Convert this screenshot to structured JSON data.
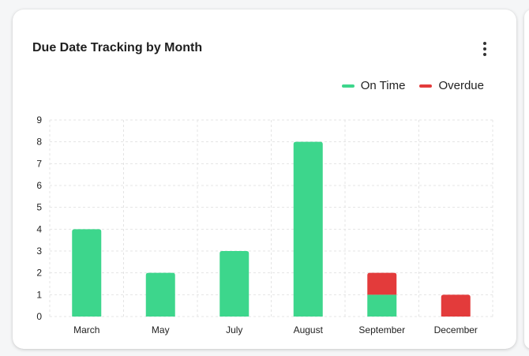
{
  "card": {
    "title": "Due Date Tracking by Month",
    "menu_icon": "more-vertical-icon"
  },
  "colors": {
    "on_time": "#3dd68c",
    "overdue": "#e33b3b",
    "grid": "#e4e4e4"
  },
  "chart_data": {
    "type": "bar",
    "stacked": true,
    "categories": [
      "March",
      "May",
      "July",
      "August",
      "September",
      "December"
    ],
    "series": [
      {
        "name": "On Time",
        "values": [
          4,
          2,
          3,
          8,
          1,
          0
        ]
      },
      {
        "name": "Overdue",
        "values": [
          0,
          0,
          0,
          0,
          1,
          1
        ]
      }
    ],
    "ylim": [
      0,
      9
    ],
    "yticks": [
      "0",
      "1",
      "2",
      "3",
      "4",
      "5",
      "6",
      "7",
      "8",
      "9"
    ],
    "grid": true,
    "legend_position": "top-right"
  }
}
